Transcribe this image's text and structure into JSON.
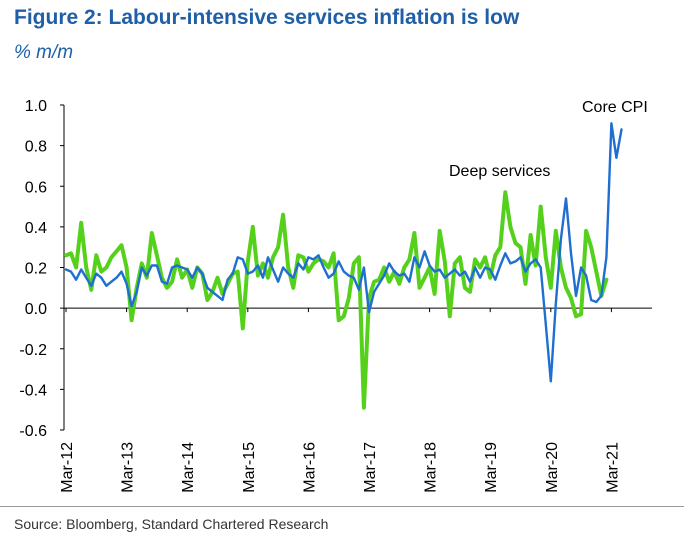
{
  "header": {
    "title": "Figure 2: Labour-intensive services inflation is low",
    "subtitle": "% m/m"
  },
  "footer": {
    "source": "Source: Bloomberg, Standard Chartered Research"
  },
  "colors": {
    "title": "#1f5fa8",
    "core_cpi": "#1f6fd0",
    "deep_services": "#55d11b",
    "axis": "#000000"
  },
  "chart_data": {
    "type": "line",
    "title": "Figure 2: Labour-intensive services inflation is low",
    "ylabel": "% m/m",
    "xlabel": "",
    "ylim": [
      -0.6,
      1.0
    ],
    "yticks": [
      -0.6,
      -0.4,
      -0.2,
      0.0,
      0.2,
      0.4,
      0.6,
      0.8,
      1.0
    ],
    "ytick_labels": [
      "-0.6",
      "-0.4",
      "-0.2",
      "0.0",
      "0.2",
      "0.4",
      "0.6",
      "0.8",
      "1.0"
    ],
    "xtick_labels": [
      "Mar-12",
      "Mar-13",
      "Mar-14",
      "Mar-15",
      "Mar-16",
      "Mar-17",
      "Mar-18",
      "Mar-19",
      "Mar-20",
      "Mar-21"
    ],
    "x_start": "Mar-12",
    "x_unit": "months",
    "series": [
      {
        "name": "Deep services",
        "color": "#55d11b",
        "values": [
          0.26,
          0.27,
          0.2,
          0.42,
          0.2,
          0.09,
          0.26,
          0.18,
          0.2,
          0.25,
          0.28,
          0.31,
          0.2,
          -0.06,
          0.1,
          0.22,
          0.15,
          0.37,
          0.26,
          0.15,
          0.1,
          0.13,
          0.24,
          0.15,
          0.19,
          0.1,
          0.2,
          0.17,
          0.04,
          0.08,
          0.15,
          0.07,
          0.12,
          0.17,
          0.18,
          -0.1,
          0.23,
          0.4,
          0.16,
          0.22,
          0.15,
          0.25,
          0.3,
          0.46,
          0.2,
          0.1,
          0.26,
          0.25,
          0.18,
          0.22,
          0.24,
          0.23,
          0.2,
          0.27,
          -0.06,
          -0.04,
          0.05,
          0.22,
          0.25,
          -0.49,
          0.05,
          0.13,
          0.14,
          0.2,
          0.13,
          0.18,
          0.12,
          0.2,
          0.24,
          0.37,
          0.1,
          0.15,
          0.2,
          0.07,
          0.38,
          0.23,
          -0.04,
          0.22,
          0.25,
          0.1,
          0.08,
          0.24,
          0.2,
          0.25,
          0.15,
          0.26,
          0.3,
          0.57,
          0.4,
          0.32,
          0.3,
          0.12,
          0.36,
          0.21,
          0.5,
          0.25,
          0.1,
          0.38,
          0.2,
          0.1,
          0.05,
          -0.04,
          -0.03,
          0.38,
          0.3,
          0.18,
          0.06,
          0.14
        ]
      },
      {
        "name": "Core CPI",
        "color": "#1f6fd0",
        "values": [
          0.19,
          0.18,
          0.14,
          0.19,
          0.15,
          0.11,
          0.17,
          0.15,
          0.11,
          0.13,
          0.15,
          0.18,
          0.12,
          0.01,
          0.08,
          0.2,
          0.16,
          0.21,
          0.21,
          0.13,
          0.12,
          0.2,
          0.21,
          0.2,
          0.19,
          0.15,
          0.2,
          0.17,
          0.1,
          0.08,
          0.06,
          0.04,
          0.14,
          0.17,
          0.25,
          0.24,
          0.17,
          0.18,
          0.21,
          0.15,
          0.25,
          0.19,
          0.13,
          0.2,
          0.17,
          0.15,
          0.22,
          0.19,
          0.25,
          0.24,
          0.26,
          0.2,
          0.15,
          0.17,
          0.23,
          0.18,
          0.16,
          0.15,
          0.09,
          0.2,
          -0.02,
          0.08,
          0.12,
          0.16,
          0.22,
          0.18,
          0.16,
          0.17,
          0.13,
          0.25,
          0.2,
          0.28,
          0.21,
          0.18,
          0.19,
          0.15,
          0.17,
          0.19,
          0.16,
          0.18,
          0.13,
          0.2,
          0.15,
          0.2,
          0.19,
          0.14,
          0.21,
          0.27,
          0.22,
          0.23,
          0.25,
          0.18,
          0.22,
          0.24,
          0.2,
          -0.08,
          -0.36,
          0.02,
          0.34,
          0.54,
          0.27,
          0.06,
          0.2,
          0.16,
          0.04,
          0.03,
          0.06,
          0.25,
          0.91,
          0.74,
          0.88
        ]
      }
    ],
    "annotations": [
      {
        "text": "Core CPI",
        "series": "Core CPI"
      },
      {
        "text": "Deep services",
        "series": "Deep services"
      }
    ],
    "legend": "inline-annotations",
    "grid": false
  }
}
